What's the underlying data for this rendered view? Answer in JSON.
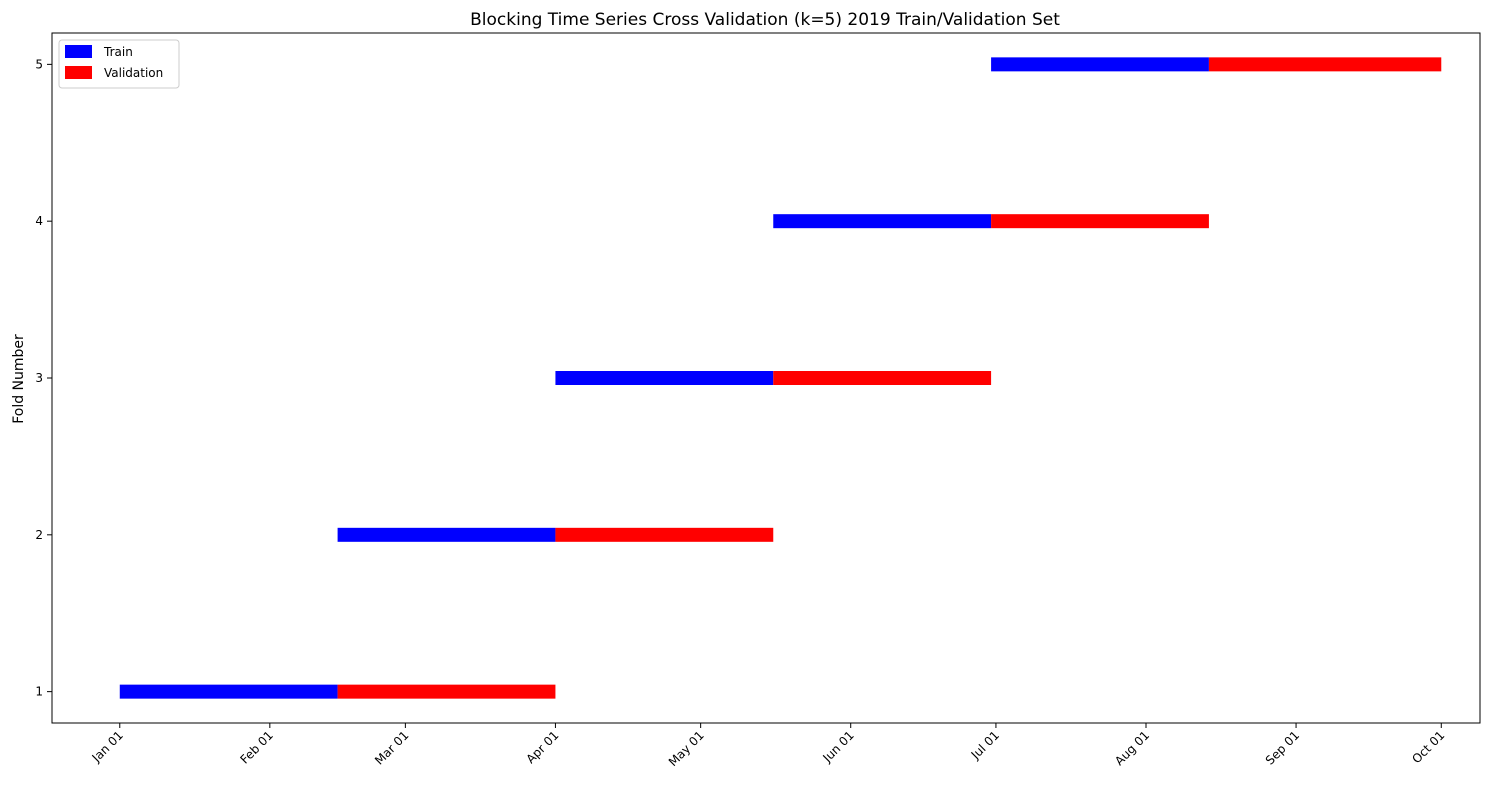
{
  "chart_data": {
    "type": "bar",
    "orientation": "horizontal-timeline",
    "title": "Blocking Time Series Cross Validation (k=5) 2019 Train/Validation Set",
    "xlabel": "",
    "ylabel": "Fold Number",
    "year": 2019,
    "xlim": [
      "2018-12-18",
      "2019-10-09"
    ],
    "ylim": [
      0.8,
      5.2
    ],
    "x_ticks": [
      {
        "date": "2019-01-01",
        "label": "Jan 01"
      },
      {
        "date": "2019-02-01",
        "label": "Feb 01"
      },
      {
        "date": "2019-03-01",
        "label": "Mar 01"
      },
      {
        "date": "2019-04-01",
        "label": "Apr 01"
      },
      {
        "date": "2019-05-01",
        "label": "May 01"
      },
      {
        "date": "2019-06-01",
        "label": "Jun 01"
      },
      {
        "date": "2019-07-01",
        "label": "Jul 01"
      },
      {
        "date": "2019-08-01",
        "label": "Aug 01"
      },
      {
        "date": "2019-09-01",
        "label": "Sep 01"
      },
      {
        "date": "2019-10-01",
        "label": "Oct 01"
      }
    ],
    "y_ticks": [
      "1",
      "2",
      "3",
      "4",
      "5"
    ],
    "legend": {
      "position": "top-left",
      "entries": [
        {
          "name": "Train",
          "color": "#0000ff"
        },
        {
          "name": "Validation",
          "color": "#ff0000"
        }
      ]
    },
    "grid": false,
    "series": [
      {
        "name": "Train",
        "color": "#0000ff",
        "values": [
          {
            "fold": 1,
            "start": "2019-01-01",
            "end": "2019-02-14"
          },
          {
            "fold": 2,
            "start": "2019-02-15",
            "end": "2019-03-31"
          },
          {
            "fold": 3,
            "start": "2019-04-01",
            "end": "2019-05-15"
          },
          {
            "fold": 4,
            "start": "2019-05-16",
            "end": "2019-06-29"
          },
          {
            "fold": 5,
            "start": "2019-06-30",
            "end": "2019-08-13"
          }
        ]
      },
      {
        "name": "Validation",
        "color": "#ff0000",
        "values": [
          {
            "fold": 1,
            "start": "2019-02-15",
            "end": "2019-03-31"
          },
          {
            "fold": 2,
            "start": "2019-04-01",
            "end": "2019-05-15"
          },
          {
            "fold": 3,
            "start": "2019-05-16",
            "end": "2019-06-29"
          },
          {
            "fold": 4,
            "start": "2019-06-30",
            "end": "2019-08-13"
          },
          {
            "fold": 5,
            "start": "2019-08-14",
            "end": "2019-09-30"
          }
        ]
      }
    ]
  }
}
